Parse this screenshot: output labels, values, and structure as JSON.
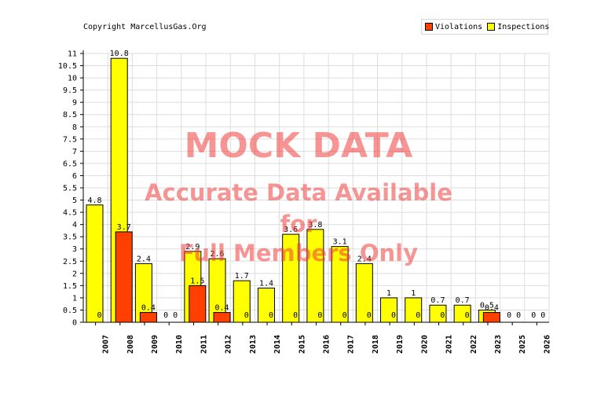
{
  "copyright": "Copyright MarcellusGas.Org",
  "legend": [
    {
      "label": "Violations",
      "color": "#ff4000"
    },
    {
      "label": "Inspections",
      "color": "#ffff00"
    }
  ],
  "watermark": {
    "line1": "MOCK DATA",
    "line2": "Accurate Data Available",
    "line3": "for",
    "line4": "Full Members Only"
  },
  "chart_data": {
    "type": "bar",
    "categories": [
      "2007",
      "2008",
      "2009",
      "2010",
      "2011",
      "2012",
      "2013",
      "2014",
      "2015",
      "2016",
      "2017",
      "2018",
      "2019",
      "2020",
      "2021",
      "2022",
      "2023",
      "2025",
      "2026"
    ],
    "series": [
      {
        "name": "Inspections",
        "color": "#ffff00",
        "values": [
          4.8,
          10.8,
          2.4,
          0,
          2.9,
          2.6,
          1.7,
          1.4,
          3.6,
          3.8,
          3.1,
          2.4,
          1,
          1,
          0.7,
          0.7,
          0.5,
          0,
          0
        ]
      },
      {
        "name": "Violations",
        "color": "#ff4000",
        "values": [
          0,
          3.7,
          0.4,
          0,
          1.5,
          0.4,
          0,
          0,
          0,
          0,
          0,
          0,
          0,
          0,
          0,
          0,
          0.4,
          0,
          0
        ]
      }
    ],
    "ylim": [
      0,
      11
    ],
    "yticks": [
      "0",
      "0.5",
      "1",
      "1.5",
      "2",
      "2.5",
      "3",
      "3.5",
      "4",
      "4.5",
      "5",
      "5.5",
      "6",
      "6.5",
      "7",
      "7.5",
      "8",
      "8.5",
      "9",
      "9.5",
      "10",
      "10.5",
      "11"
    ],
    "grid": true,
    "legend_position": "top-right"
  }
}
